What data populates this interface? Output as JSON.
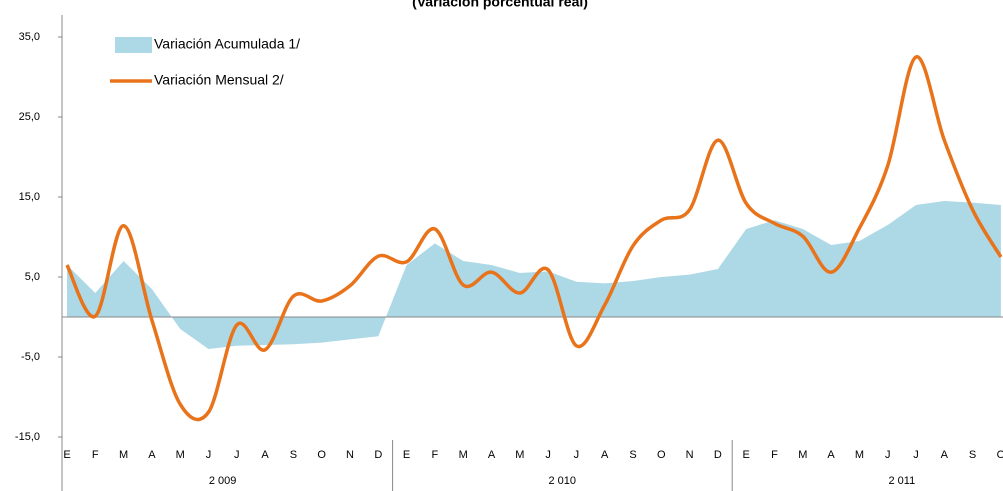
{
  "chart_data": {
    "type": "line",
    "title": "(Variación porcentual real)",
    "categories": [
      "E",
      "F",
      "M",
      "A",
      "M",
      "J",
      "J",
      "A",
      "S",
      "O",
      "N",
      "D",
      "E",
      "F",
      "M",
      "A",
      "M",
      "J",
      "J",
      "A",
      "S",
      "O",
      "N",
      "D",
      "E",
      "F",
      "M",
      "A",
      "M",
      "J",
      "J",
      "A",
      "S",
      "O"
    ],
    "years": [
      "2 009",
      "2 010",
      "2 011"
    ],
    "series": [
      {
        "name": "Variación Acumulada 1/",
        "color": "#add8e6",
        "style": "area",
        "values": [
          6.5,
          3,
          7,
          3.5,
          -1.5,
          -4,
          -3.6,
          -3.5,
          -3.4,
          -3.2,
          -2.8,
          -2.4,
          6.5,
          9.2,
          7,
          6.5,
          5.5,
          5.7,
          4.4,
          4.2,
          4.5,
          5,
          5.3,
          6,
          11,
          12.1,
          11,
          9,
          9.5,
          11.5,
          14,
          14.5,
          14.3,
          14
        ]
      },
      {
        "name": "Variación Mensual 2/",
        "color": "#e8731a",
        "style": "line",
        "values": [
          6.5,
          0.1,
          11.4,
          -0.4,
          -10.9,
          -11.9,
          -1,
          -4.1,
          2.6,
          2,
          3.9,
          7.6,
          6.9,
          11,
          4,
          5.6,
          3,
          5.9,
          -3.6,
          1.5,
          8.9,
          12.1,
          13.4,
          22.1,
          14.2,
          11.7,
          10.1,
          5.6,
          11.1,
          18.9,
          32.5,
          22.1,
          13.4,
          7.5
        ]
      }
    ],
    "ylim": [
      -15,
      35
    ],
    "yticks": [
      {
        "value": -15,
        "label": "-15,0"
      },
      {
        "value": -5,
        "label": "-5,0"
      },
      {
        "value": 5,
        "label": "5,0"
      },
      {
        "value": 15,
        "label": "15,0"
      },
      {
        "value": 25,
        "label": "25,0"
      },
      {
        "value": 35,
        "label": "35,0"
      }
    ]
  }
}
